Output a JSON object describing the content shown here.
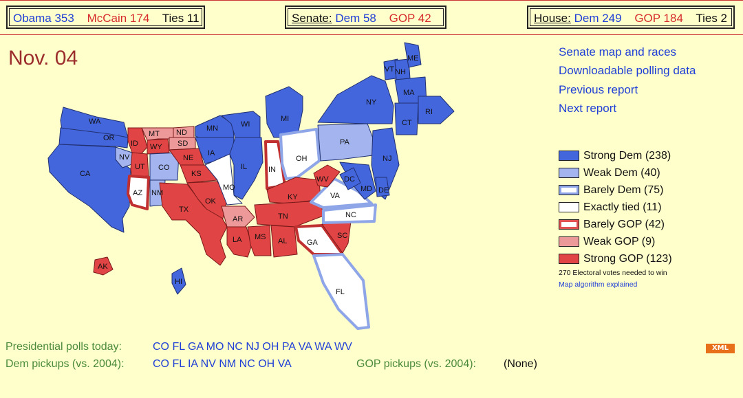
{
  "header": {
    "pres": {
      "obama": "Obama 353",
      "mccain": "McCain 174",
      "ties": "Ties 11"
    },
    "senate": {
      "label": "Senate:",
      "dem": "Dem 58",
      "gop": "GOP 42"
    },
    "house": {
      "label": "House:",
      "dem": "Dem 249",
      "gop": "GOP 184",
      "ties": "Ties 2"
    }
  },
  "date": "Nov. 04",
  "links": [
    "Senate map and races",
    "Downloadable polling data",
    "Previous report",
    "Next report"
  ],
  "legend": [
    {
      "label": "Strong Dem (238)",
      "color": "#4466dd",
      "style": "solid"
    },
    {
      "label": "Weak Dem (40)",
      "color": "#a3b4ee",
      "style": "solid"
    },
    {
      "label": "Barely Dem (75)",
      "color": "#ffffff",
      "style": "ring-blue"
    },
    {
      "label": "Exactly tied (11)",
      "color": "#ffffff",
      "style": "plain"
    },
    {
      "label": "Barely GOP (42)",
      "color": "#ffffff",
      "style": "ring-red"
    },
    {
      "label": "Weak GOP (9)",
      "color": "#ee9999",
      "style": "solid"
    },
    {
      "label": "Strong GOP (123)",
      "color": "#e04444",
      "style": "solid"
    }
  ],
  "note": "270 Electoral votes needed to win",
  "note_link": "Map algorithm explained",
  "bottom": {
    "polls_label": "Presidential polls today:",
    "polls_states": "CO FL GA MO NC NJ OH PA VA WA WV",
    "dem_label": "Dem pickups (vs. 2004):",
    "dem_states": "CO FL IA NV NM NC OH VA",
    "gop_label": "GOP pickups (vs. 2004):",
    "gop_states": "(None)"
  },
  "xml_label": "XML",
  "states": [
    "WA",
    "OR",
    "CA",
    "ID",
    "MT",
    "WY",
    "ND",
    "SD",
    "NV",
    "UT",
    "CO",
    "NE",
    "KS",
    "AZ",
    "NM",
    "TX",
    "OK",
    "MN",
    "IA",
    "WI",
    "IL",
    "MO",
    "MI",
    "IN",
    "OH",
    "KY",
    "AR",
    "LA",
    "MS",
    "TN",
    "AL",
    "GA",
    "SC",
    "NC",
    "VA",
    "WV",
    "PA",
    "NY",
    "NJ",
    "MD",
    "DE",
    "DC",
    "VT",
    "NH",
    "ME",
    "MA",
    "CT",
    "RI",
    "FL",
    "AK",
    "HI"
  ]
}
